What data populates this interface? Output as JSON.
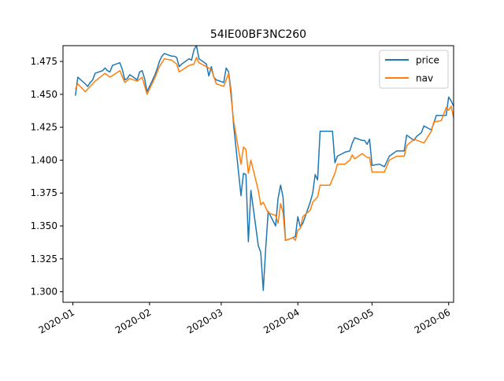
{
  "chart_data": {
    "type": "line",
    "title": "54IE00BF3NC260",
    "xlabel": "",
    "ylabel": "",
    "xlim": [
      "2019-12-28",
      "2020-06-03"
    ],
    "ylim": [
      1.292,
      1.487
    ],
    "x_ticks": [
      {
        "date": "2020-01-01",
        "label": "2020-01"
      },
      {
        "date": "2020-02-01",
        "label": "2020-02"
      },
      {
        "date": "2020-03-01",
        "label": "2020-03"
      },
      {
        "date": "2020-04-01",
        "label": "2020-04"
      },
      {
        "date": "2020-05-01",
        "label": "2020-05"
      },
      {
        "date": "2020-06-01",
        "label": "2020-06"
      }
    ],
    "y_ticks": [
      {
        "value": 1.3,
        "label": "1.300"
      },
      {
        "value": 1.325,
        "label": "1.325"
      },
      {
        "value": 1.35,
        "label": "1.350"
      },
      {
        "value": 1.375,
        "label": "1.375"
      },
      {
        "value": 1.4,
        "label": "1.400"
      },
      {
        "value": 1.425,
        "label": "1.425"
      },
      {
        "value": 1.45,
        "label": "1.450"
      },
      {
        "value": 1.475,
        "label": "1.475"
      }
    ],
    "grid": false,
    "legend_position": "top-right",
    "series": [
      {
        "name": "price",
        "color": "#1f77b4",
        "points": [
          [
            "2020-01-02",
            1.449
          ],
          [
            "2020-01-03",
            1.463
          ],
          [
            "2020-01-06",
            1.458
          ],
          [
            "2020-01-07",
            1.456
          ],
          [
            "2020-01-08",
            1.459
          ],
          [
            "2020-01-09",
            1.461
          ],
          [
            "2020-01-10",
            1.466
          ],
          [
            "2020-01-13",
            1.468
          ],
          [
            "2020-01-14",
            1.47
          ],
          [
            "2020-01-15",
            1.468
          ],
          [
            "2020-01-16",
            1.467
          ],
          [
            "2020-01-17",
            1.472
          ],
          [
            "2020-01-20",
            1.474
          ],
          [
            "2020-01-21",
            1.469
          ],
          [
            "2020-01-22",
            1.461
          ],
          [
            "2020-01-23",
            1.462
          ],
          [
            "2020-01-24",
            1.465
          ],
          [
            "2020-01-27",
            1.461
          ],
          [
            "2020-01-28",
            1.467
          ],
          [
            "2020-01-29",
            1.468
          ],
          [
            "2020-01-30",
            1.462
          ],
          [
            "2020-01-31",
            1.452
          ],
          [
            "2020-02-03",
            1.464
          ],
          [
            "2020-02-04",
            1.469
          ],
          [
            "2020-02-05",
            1.475
          ],
          [
            "2020-02-06",
            1.479
          ],
          [
            "2020-02-07",
            1.481
          ],
          [
            "2020-02-10",
            1.479
          ],
          [
            "2020-02-11",
            1.479
          ],
          [
            "2020-02-12",
            1.478
          ],
          [
            "2020-02-13",
            1.471
          ],
          [
            "2020-02-14",
            1.473
          ],
          [
            "2020-02-17",
            1.477
          ],
          [
            "2020-02-18",
            1.476
          ],
          [
            "2020-02-19",
            1.484
          ],
          [
            "2020-02-20",
            1.487
          ],
          [
            "2020-02-21",
            1.477
          ],
          [
            "2020-02-24",
            1.473
          ],
          [
            "2020-02-25",
            1.464
          ],
          [
            "2020-02-26",
            1.471
          ],
          [
            "2020-02-27",
            1.463
          ],
          [
            "2020-02-28",
            1.461
          ],
          [
            "2020-03-02",
            1.459
          ],
          [
            "2020-03-03",
            1.47
          ],
          [
            "2020-03-04",
            1.467
          ],
          [
            "2020-03-05",
            1.452
          ],
          [
            "2020-03-06",
            1.427
          ],
          [
            "2020-03-09",
            1.373
          ],
          [
            "2020-03-10",
            1.39
          ],
          [
            "2020-03-11",
            1.389
          ],
          [
            "2020-03-12",
            1.338
          ],
          [
            "2020-03-13",
            1.377
          ],
          [
            "2020-03-16",
            1.335
          ],
          [
            "2020-03-17",
            1.33
          ],
          [
            "2020-03-18",
            1.301
          ],
          [
            "2020-03-19",
            1.333
          ],
          [
            "2020-03-20",
            1.361
          ],
          [
            "2020-03-23",
            1.35
          ],
          [
            "2020-03-24",
            1.371
          ],
          [
            "2020-03-25",
            1.381
          ],
          [
            "2020-03-26",
            1.372
          ],
          [
            "2020-03-27",
            1.339
          ],
          [
            "2020-03-30",
            1.341
          ],
          [
            "2020-03-31",
            1.342
          ],
          [
            "2020-04-01",
            1.357
          ],
          [
            "2020-04-02",
            1.349
          ],
          [
            "2020-04-03",
            1.352
          ],
          [
            "2020-04-06",
            1.368
          ],
          [
            "2020-04-07",
            1.375
          ],
          [
            "2020-04-08",
            1.389
          ],
          [
            "2020-04-09",
            1.385
          ],
          [
            "2020-04-10",
            1.422
          ],
          [
            "2020-04-14",
            1.422
          ],
          [
            "2020-04-15",
            1.422
          ],
          [
            "2020-04-16",
            1.398
          ],
          [
            "2020-04-17",
            1.403
          ],
          [
            "2020-04-20",
            1.406
          ],
          [
            "2020-04-22",
            1.407
          ],
          [
            "2020-04-23",
            1.413
          ],
          [
            "2020-04-24",
            1.417
          ],
          [
            "2020-04-27",
            1.415
          ],
          [
            "2020-04-28",
            1.415
          ],
          [
            "2020-04-29",
            1.412
          ],
          [
            "2020-04-30",
            1.416
          ],
          [
            "2020-05-01",
            1.396
          ],
          [
            "2020-05-04",
            1.397
          ],
          [
            "2020-05-06",
            1.395
          ],
          [
            "2020-05-08",
            1.403
          ],
          [
            "2020-05-11",
            1.407
          ],
          [
            "2020-05-14",
            1.407
          ],
          [
            "2020-05-15",
            1.419
          ],
          [
            "2020-05-18",
            1.415
          ],
          [
            "2020-05-19",
            1.418
          ],
          [
            "2020-05-21",
            1.421
          ],
          [
            "2020-05-22",
            1.426
          ],
          [
            "2020-05-25",
            1.423
          ],
          [
            "2020-05-26",
            1.428
          ],
          [
            "2020-05-27",
            1.434
          ],
          [
            "2020-05-29",
            1.434
          ],
          [
            "2020-05-31",
            1.434
          ],
          [
            "2020-06-01",
            1.448
          ],
          [
            "2020-06-02",
            1.445
          ],
          [
            "2020-06-03",
            1.441
          ]
        ]
      },
      {
        "name": "nav",
        "color": "#ff7f0e",
        "points": [
          [
            "2020-01-02",
            1.454
          ],
          [
            "2020-01-03",
            1.458
          ],
          [
            "2020-01-06",
            1.452
          ],
          [
            "2020-01-08",
            1.456
          ],
          [
            "2020-01-10",
            1.46
          ],
          [
            "2020-01-14",
            1.466
          ],
          [
            "2020-01-16",
            1.463
          ],
          [
            "2020-01-20",
            1.468
          ],
          [
            "2020-01-22",
            1.459
          ],
          [
            "2020-01-24",
            1.462
          ],
          [
            "2020-01-27",
            1.46
          ],
          [
            "2020-01-29",
            1.463
          ],
          [
            "2020-01-31",
            1.45
          ],
          [
            "2020-02-03",
            1.462
          ],
          [
            "2020-02-05",
            1.471
          ],
          [
            "2020-02-07",
            1.477
          ],
          [
            "2020-02-10",
            1.476
          ],
          [
            "2020-02-12",
            1.473
          ],
          [
            "2020-02-13",
            1.467
          ],
          [
            "2020-02-17",
            1.472
          ],
          [
            "2020-02-19",
            1.473
          ],
          [
            "2020-02-20",
            1.478
          ],
          [
            "2020-02-21",
            1.474
          ],
          [
            "2020-02-24",
            1.471
          ],
          [
            "2020-02-26",
            1.469
          ],
          [
            "2020-02-28",
            1.458
          ],
          [
            "2020-03-02",
            1.456
          ],
          [
            "2020-03-04",
            1.466
          ],
          [
            "2020-03-06",
            1.43
          ],
          [
            "2020-03-09",
            1.397
          ],
          [
            "2020-03-10",
            1.41
          ],
          [
            "2020-03-11",
            1.408
          ],
          [
            "2020-03-12",
            1.39
          ],
          [
            "2020-03-13",
            1.4
          ],
          [
            "2020-03-16",
            1.377
          ],
          [
            "2020-03-17",
            1.366
          ],
          [
            "2020-03-18",
            1.368
          ],
          [
            "2020-03-19",
            1.364
          ],
          [
            "2020-03-20",
            1.36
          ],
          [
            "2020-03-23",
            1.358
          ],
          [
            "2020-03-24",
            1.352
          ],
          [
            "2020-03-25",
            1.367
          ],
          [
            "2020-03-26",
            1.36
          ],
          [
            "2020-03-27",
            1.339
          ],
          [
            "2020-03-30",
            1.341
          ],
          [
            "2020-03-31",
            1.339
          ],
          [
            "2020-04-01",
            1.347
          ],
          [
            "2020-04-02",
            1.348
          ],
          [
            "2020-04-03",
            1.357
          ],
          [
            "2020-04-06",
            1.362
          ],
          [
            "2020-04-07",
            1.368
          ],
          [
            "2020-04-09",
            1.372
          ],
          [
            "2020-04-10",
            1.381
          ],
          [
            "2020-04-14",
            1.381
          ],
          [
            "2020-04-16",
            1.39
          ],
          [
            "2020-04-17",
            1.397
          ],
          [
            "2020-04-20",
            1.397
          ],
          [
            "2020-04-22",
            1.4
          ],
          [
            "2020-04-23",
            1.404
          ],
          [
            "2020-04-24",
            1.401
          ],
          [
            "2020-04-27",
            1.405
          ],
          [
            "2020-04-29",
            1.402
          ],
          [
            "2020-04-30",
            1.402
          ],
          [
            "2020-05-01",
            1.391
          ],
          [
            "2020-05-04",
            1.391
          ],
          [
            "2020-05-06",
            1.391
          ],
          [
            "2020-05-08",
            1.4
          ],
          [
            "2020-05-11",
            1.403
          ],
          [
            "2020-05-14",
            1.403
          ],
          [
            "2020-05-15",
            1.411
          ],
          [
            "2020-05-18",
            1.416
          ],
          [
            "2020-05-22",
            1.413
          ],
          [
            "2020-05-25",
            1.422
          ],
          [
            "2020-05-26",
            1.429
          ],
          [
            "2020-05-29",
            1.43
          ],
          [
            "2020-05-31",
            1.44
          ],
          [
            "2020-06-01",
            1.438
          ],
          [
            "2020-06-02",
            1.441
          ],
          [
            "2020-06-03",
            1.432
          ]
        ]
      }
    ]
  }
}
